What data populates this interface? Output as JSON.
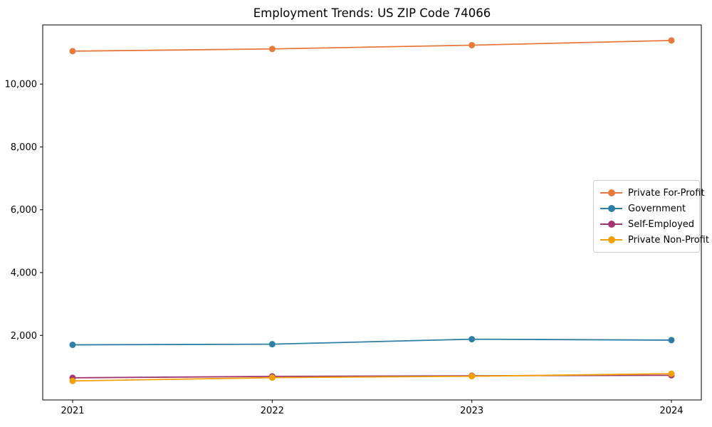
{
  "chart_data": {
    "type": "line",
    "title": "Employment Trends: US ZIP Code 74066",
    "xlabel": "",
    "ylabel": "",
    "grid": false,
    "legend_position": "center right",
    "x": [
      2021,
      2022,
      2023,
      2024
    ],
    "x_tick_labels": [
      "2021",
      "2022",
      "2023",
      "2024"
    ],
    "y_ticks": [
      2000,
      4000,
      6000,
      8000,
      10000
    ],
    "y_tick_labels": [
      "2,000",
      "4,000",
      "6,000",
      "8,000",
      "10,000"
    ],
    "ylim": [
      -55,
      11885
    ],
    "series": [
      {
        "name": "Private For-Profit",
        "color": "#e8793e",
        "values": [
          11050,
          11120,
          11240,
          11390
        ]
      },
      {
        "name": "Government",
        "color": "#2e7fa5",
        "values": [
          1700,
          1720,
          1880,
          1850
        ]
      },
      {
        "name": "Self-Employed",
        "color": "#a23670",
        "values": [
          650,
          695,
          715,
          730
        ]
      },
      {
        "name": "Private Non-Profit",
        "color": "#f2a007",
        "values": [
          550,
          655,
          700,
          780
        ]
      }
    ]
  }
}
